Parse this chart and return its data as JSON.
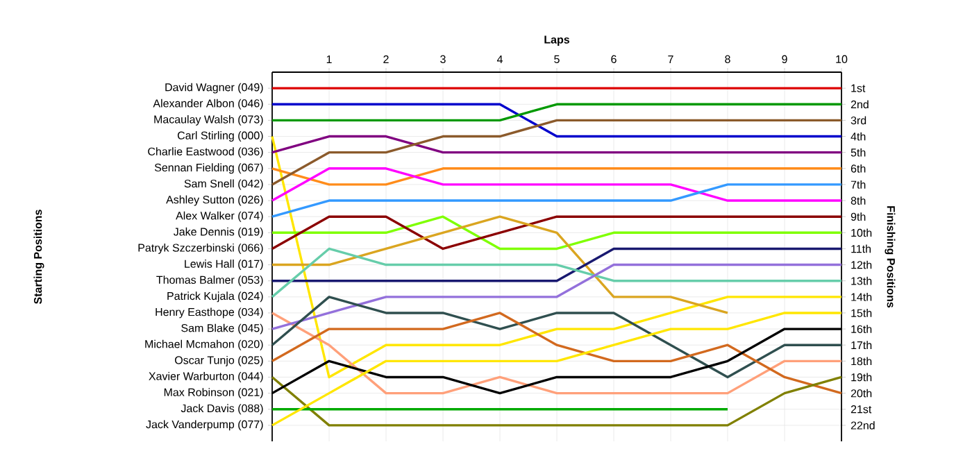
{
  "chart_data": {
    "type": "line",
    "xlabel": "Laps",
    "annotations": [
      "Starting Positions"
    ],
    "y2label": "Finishing Positions",
    "grid": true,
    "line_style": "solid",
    "x": [
      0,
      1,
      2,
      3,
      4,
      5,
      6,
      7,
      8,
      9,
      10
    ],
    "xlim": [
      0,
      10
    ],
    "xticks": [
      1,
      2,
      3,
      4,
      5,
      6,
      7,
      8,
      9,
      10
    ],
    "y2lim": [
      23,
      0
    ],
    "y2ticks": [
      {
        "value": 1,
        "label": "1st"
      },
      {
        "value": 2,
        "label": "2nd"
      },
      {
        "value": 3,
        "label": "3rd"
      },
      {
        "value": 4,
        "label": "4th"
      },
      {
        "value": 5,
        "label": "5th"
      },
      {
        "value": 6,
        "label": "6th"
      },
      {
        "value": 7,
        "label": "7th"
      },
      {
        "value": 8,
        "label": "8th"
      },
      {
        "value": 9,
        "label": "9th"
      },
      {
        "value": 10,
        "label": "10th"
      },
      {
        "value": 11,
        "label": "11th"
      },
      {
        "value": 12,
        "label": "12th"
      },
      {
        "value": 13,
        "label": "13th"
      },
      {
        "value": 14,
        "label": "14th"
      },
      {
        "value": 15,
        "label": "15th"
      },
      {
        "value": 16,
        "label": "16th"
      },
      {
        "value": 17,
        "label": "17th"
      },
      {
        "value": 18,
        "label": "18th"
      },
      {
        "value": 19,
        "label": "19th"
      },
      {
        "value": 20,
        "label": "20th"
      },
      {
        "value": 21,
        "label": "21st"
      },
      {
        "value": 22,
        "label": "22nd"
      }
    ],
    "series": [
      {
        "name": "David Wagner (049)",
        "axis": "y2",
        "color": "#dd0000",
        "values": [
          1,
          1,
          1,
          1,
          1,
          1,
          1,
          1,
          1,
          1,
          1
        ]
      },
      {
        "name": "Alexander Albon (046)",
        "axis": "y2",
        "color": "#0000cc",
        "values": [
          2,
          2,
          2,
          2,
          2,
          4,
          4,
          4,
          4,
          4,
          4
        ]
      },
      {
        "name": "Macaulay Walsh (073)",
        "axis": "y2",
        "color": "#009900",
        "values": [
          3,
          3,
          3,
          3,
          3,
          2,
          2,
          2,
          2,
          2,
          2
        ]
      },
      {
        "name": "Carl Stirling (000)",
        "axis": "y2",
        "color": "#ffe600",
        "values": [
          4,
          19,
          17,
          17,
          17,
          16,
          16,
          15,
          14,
          14,
          14
        ]
      },
      {
        "name": "Charlie Eastwood (036)",
        "axis": "y2",
        "color": "#800080",
        "values": [
          5,
          4,
          4,
          5,
          5,
          5,
          5,
          5,
          5,
          5,
          5
        ]
      },
      {
        "name": "Sennan Fielding (067)",
        "axis": "y2",
        "color": "#ff8c1a",
        "values": [
          6,
          7,
          7,
          6,
          6,
          6,
          6,
          6,
          6,
          6,
          6
        ]
      },
      {
        "name": "Sam Snell (042)",
        "axis": "y2",
        "color": "#8b5a2b",
        "values": [
          7,
          5,
          5,
          4,
          4,
          3,
          3,
          3,
          3,
          3,
          3
        ]
      },
      {
        "name": "Ashley Sutton (026)",
        "axis": "y2",
        "color": "#ff00ff",
        "values": [
          8,
          6,
          6,
          7,
          7,
          7,
          7,
          7,
          8,
          8,
          8
        ]
      },
      {
        "name": "Alex Walker (074)",
        "axis": "y2",
        "color": "#3399ff",
        "values": [
          9,
          8,
          8,
          8,
          8,
          8,
          8,
          8,
          7,
          7,
          7
        ]
      },
      {
        "name": "Jake Dennis (019)",
        "axis": "y2",
        "color": "#7fff00",
        "values": [
          10,
          10,
          10,
          9,
          11,
          11,
          10,
          10,
          10,
          10,
          10
        ]
      },
      {
        "name": "Patryk Szczerbinski (066)",
        "axis": "y2",
        "color": "#8b0000",
        "values": [
          11,
          9,
          9,
          11,
          10,
          9,
          9,
          9,
          9,
          9,
          9
        ]
      },
      {
        "name": "Lewis Hall (017)",
        "axis": "y2",
        "color": "#daa520",
        "values": [
          12,
          12,
          11,
          10,
          9,
          10,
          14,
          14,
          15,
          null,
          null
        ]
      },
      {
        "name": "Thomas Balmer (053)",
        "axis": "y2",
        "color": "#191970",
        "values": [
          13,
          13,
          13,
          13,
          13,
          13,
          11,
          11,
          11,
          11,
          11
        ]
      },
      {
        "name": "Patrick Kujala (024)",
        "axis": "y2",
        "color": "#66cdaa",
        "values": [
          14,
          11,
          12,
          12,
          12,
          12,
          13,
          13,
          13,
          13,
          13
        ]
      },
      {
        "name": "Henry Easthope (034)",
        "axis": "y2",
        "color": "#ffa07a",
        "values": [
          15,
          17,
          20,
          20,
          19,
          20,
          20,
          20,
          20,
          18,
          18
        ]
      },
      {
        "name": "Sam Blake (045)",
        "axis": "y2",
        "color": "#9370db",
        "values": [
          16,
          15,
          14,
          14,
          14,
          14,
          12,
          12,
          12,
          12,
          12
        ]
      },
      {
        "name": "Michael Mcmahon (020)",
        "axis": "y2",
        "color": "#2f4f4f",
        "values": [
          17,
          14,
          15,
          15,
          16,
          15,
          15,
          17,
          19,
          17,
          17
        ]
      },
      {
        "name": "Oscar Tunjo (025)",
        "axis": "y2",
        "color": "#d2691e",
        "values": [
          18,
          16,
          16,
          16,
          15,
          17,
          18,
          18,
          17,
          19,
          20
        ]
      },
      {
        "name": "Xavier Warburton (044)",
        "axis": "y2",
        "color": "#808000",
        "values": [
          19,
          22,
          22,
          22,
          22,
          22,
          22,
          22,
          22,
          20,
          19
        ]
      },
      {
        "name": "Max Robinson (021)",
        "axis": "y2",
        "color": "#000000",
        "values": [
          20,
          18,
          19,
          19,
          20,
          19,
          19,
          19,
          18,
          16,
          16
        ]
      },
      {
        "name": "Jack Davis (088)",
        "axis": "y2",
        "color": "#00aa00",
        "values": [
          21,
          21,
          21,
          21,
          21,
          21,
          21,
          21,
          21,
          null,
          null
        ]
      },
      {
        "name": "Jack Vanderpump (077)",
        "axis": "y2",
        "color": "#ffe600",
        "values": [
          22,
          20,
          18,
          18,
          18,
          18,
          17,
          16,
          16,
          15,
          15
        ]
      }
    ]
  }
}
